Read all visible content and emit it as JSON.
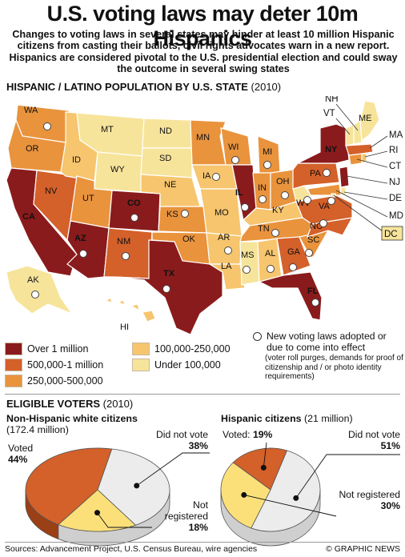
{
  "headline": "U.S. voting laws may deter 10m Hispanics",
  "standfirst": "Changes to voting laws in several states may hinder at least 10 million Hispanic citizens from casting their ballots, civil rights advocates warn in a new report. Hispanics are considered pivotal to the U.S. presidential election and could sway the outcome in several swing states",
  "map_section": {
    "title": "HISPANIC / LATINO POPULATION BY U.S. STATE",
    "year": "(2010)"
  },
  "colors": {
    "over_1m": "#8a1b1c",
    "500k_1m": "#d4602a",
    "250k_500k": "#e9933d",
    "100k_250k": "#f6c56e",
    "under_100k": "#f7e49b",
    "border": "#ffffff"
  },
  "states": [
    {
      "abbr": "WA",
      "cat": "250k_500k",
      "new_law": true
    },
    {
      "abbr": "OR",
      "cat": "250k_500k",
      "new_law": false
    },
    {
      "abbr": "CA",
      "cat": "over_1m",
      "new_law": false
    },
    {
      "abbr": "NV",
      "cat": "500k_1m",
      "new_law": false
    },
    {
      "abbr": "ID",
      "cat": "100k_250k",
      "new_law": false
    },
    {
      "abbr": "MT",
      "cat": "under_100k",
      "new_law": false
    },
    {
      "abbr": "WY",
      "cat": "under_100k",
      "new_law": false
    },
    {
      "abbr": "UT",
      "cat": "250k_500k",
      "new_law": false
    },
    {
      "abbr": "AZ",
      "cat": "over_1m",
      "new_law": true
    },
    {
      "abbr": "CO",
      "cat": "over_1m",
      "new_law": true
    },
    {
      "abbr": "NM",
      "cat": "500k_1m",
      "new_law": true
    },
    {
      "abbr": "ND",
      "cat": "under_100k",
      "new_law": false
    },
    {
      "abbr": "SD",
      "cat": "under_100k",
      "new_law": false
    },
    {
      "abbr": "NE",
      "cat": "100k_250k",
      "new_law": false
    },
    {
      "abbr": "KS",
      "cat": "250k_500k",
      "new_law": true
    },
    {
      "abbr": "OK",
      "cat": "250k_500k",
      "new_law": false
    },
    {
      "abbr": "TX",
      "cat": "over_1m",
      "new_law": true
    },
    {
      "abbr": "MN",
      "cat": "250k_500k",
      "new_law": false
    },
    {
      "abbr": "IA",
      "cat": "100k_250k",
      "new_law": true
    },
    {
      "abbr": "MO",
      "cat": "100k_250k",
      "new_law": false
    },
    {
      "abbr": "AR",
      "cat": "100k_250k",
      "new_law": true
    },
    {
      "abbr": "LA",
      "cat": "100k_250k",
      "new_law": false
    },
    {
      "abbr": "WI",
      "cat": "250k_500k",
      "new_law": true
    },
    {
      "abbr": "IL",
      "cat": "over_1m",
      "new_law": true
    },
    {
      "abbr": "MI",
      "cat": "250k_500k",
      "new_law": true
    },
    {
      "abbr": "IN",
      "cat": "250k_500k",
      "new_law": true
    },
    {
      "abbr": "OH",
      "cat": "250k_500k",
      "new_law": true
    },
    {
      "abbr": "KY",
      "cat": "100k_250k",
      "new_law": false
    },
    {
      "abbr": "TN",
      "cat": "250k_500k",
      "new_law": true
    },
    {
      "abbr": "MS",
      "cat": "under_100k",
      "new_law": true
    },
    {
      "abbr": "AL",
      "cat": "100k_250k",
      "new_law": true
    },
    {
      "abbr": "GA",
      "cat": "500k_1m",
      "new_law": true
    },
    {
      "abbr": "FL",
      "cat": "over_1m",
      "new_law": true
    },
    {
      "abbr": "SC",
      "cat": "250k_500k",
      "new_law": true
    },
    {
      "abbr": "NC",
      "cat": "500k_1m",
      "new_law": true
    },
    {
      "abbr": "VA",
      "cat": "500k_1m",
      "new_law": true
    },
    {
      "abbr": "WV",
      "cat": "under_100k",
      "new_law": true
    },
    {
      "abbr": "PA",
      "cat": "500k_1m",
      "new_law": true
    },
    {
      "abbr": "NY",
      "cat": "over_1m",
      "new_law": false
    },
    {
      "abbr": "NJ",
      "cat": "over_1m",
      "new_law": false
    },
    {
      "abbr": "DE",
      "cat": "under_100k",
      "new_law": false
    },
    {
      "abbr": "MD",
      "cat": "250k_500k",
      "new_law": false
    },
    {
      "abbr": "DC",
      "cat": "under_100k",
      "new_law": false
    },
    {
      "abbr": "CT",
      "cat": "250k_500k",
      "new_law": false
    },
    {
      "abbr": "RI",
      "cat": "100k_250k",
      "new_law": false
    },
    {
      "abbr": "MA",
      "cat": "500k_1m",
      "new_law": false
    },
    {
      "abbr": "VT",
      "cat": "under_100k",
      "new_law": false
    },
    {
      "abbr": "NH",
      "cat": "under_100k",
      "new_law": false
    },
    {
      "abbr": "ME",
      "cat": "under_100k",
      "new_law": true
    },
    {
      "abbr": "AK",
      "cat": "under_100k",
      "new_law": true
    },
    {
      "abbr": "HI",
      "cat": "100k_250k",
      "new_law": false
    }
  ],
  "legend": {
    "over_1m": "Over 1 million",
    "500k_1m": "500,000-1 million",
    "250k_500k": "250,000-500,000",
    "100k_250k": "100,000-250,000",
    "under_100k": "Under 100,000"
  },
  "note": {
    "title": "New voting laws adopted or due to come into effect",
    "detail": "(voter roll purges, demands for proof of citizenship and / or photo identity requirements)"
  },
  "voters_section": {
    "title": "ELIGIBLE VOTERS",
    "year": "(2010)"
  },
  "pie_colors": {
    "voted": "#d4602a",
    "did_not_vote": "#ececec",
    "not_registered": "#fbe07a"
  },
  "chart_data": [
    {
      "type": "pie",
      "title": "Non-Hispanic white citizens",
      "subtitle": "(172.4 million)",
      "slices": [
        {
          "label": "Voted",
          "value": 44,
          "display": "44%"
        },
        {
          "label": "Did not vote",
          "value": 38,
          "display": "38%"
        },
        {
          "label": "Not registered",
          "value": 18,
          "display": "18%"
        }
      ]
    },
    {
      "type": "pie",
      "title": "Hispanic citizens",
      "subtitle": "(21 million)",
      "slices": [
        {
          "label": "Voted:",
          "value": 19,
          "display": "19%"
        },
        {
          "label": "Did not vote",
          "value": 51,
          "display": "51%"
        },
        {
          "label": "Not registered",
          "value": 30,
          "display": "30%"
        }
      ]
    }
  ],
  "footer": {
    "sources": "Sources: Advancement Project, U.S. Census Bureau, wire agencies",
    "credit": "© GRAPHIC NEWS"
  }
}
